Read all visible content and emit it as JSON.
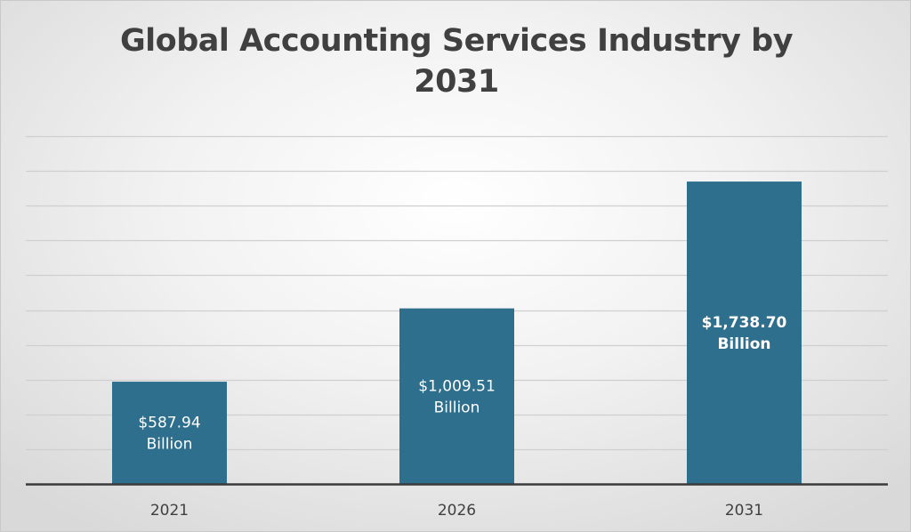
{
  "chart_data": {
    "type": "bar",
    "title": "Global Accounting Services Industry by 2031",
    "categories": [
      "2021",
      "2026",
      "2031"
    ],
    "values": [
      587.94,
      1009.51,
      1738.7
    ],
    "data_labels": [
      [
        "$587.94",
        "Billion"
      ],
      [
        "$1,009.51",
        "Billion"
      ],
      [
        "$1,738.70",
        "Billion"
      ]
    ],
    "data_label_bold": [
      false,
      false,
      true
    ],
    "ylim": [
      0,
      2000
    ],
    "y_gridline_step": 200,
    "xlabel": "",
    "ylabel": "",
    "grid": true,
    "legend": "none",
    "colors": {
      "bar": "#2e6f8e",
      "gridline": "#cfcfcf",
      "axis": "#3a3a3a",
      "tick_label": "#404040",
      "data_label": "#ffffff"
    }
  }
}
